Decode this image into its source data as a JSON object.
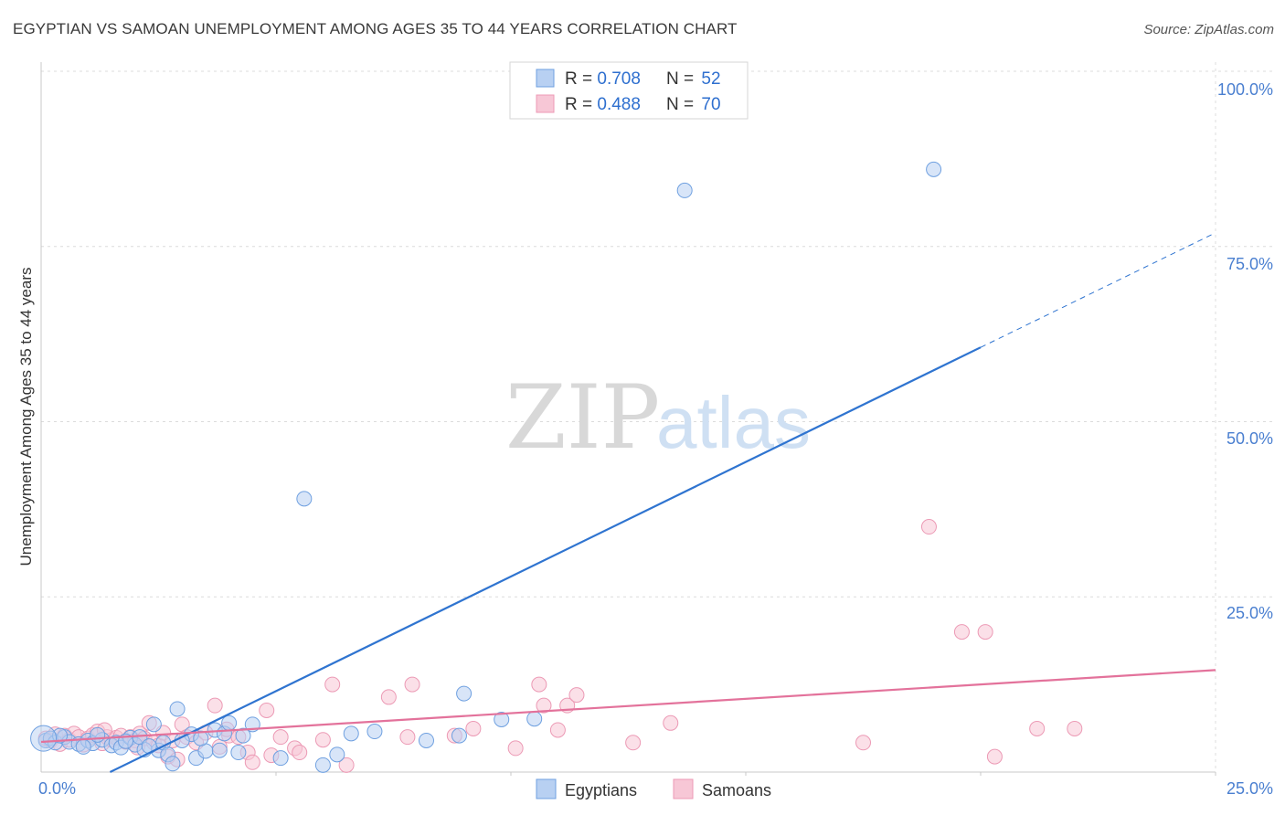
{
  "header": {
    "title": "EGYPTIAN VS SAMOAN UNEMPLOYMENT AMONG AGES 35 TO 44 YEARS CORRELATION CHART",
    "source": "Source: ZipAtlas.com"
  },
  "watermark": {
    "zip": "ZIP",
    "atlas": "atlas"
  },
  "colors": {
    "egyptians": "#6fa0e0",
    "egyptians_fill": "#b8d0f2",
    "egyptians_line": "#2f74d0",
    "samoans": "#ec9ab5",
    "samoans_fill": "#f7c7d6",
    "samoans_line": "#e3729b",
    "tick_text": "#4a7fd0"
  },
  "legend": {
    "rows": [
      {
        "r_label": "R = ",
        "r_value": "0.708",
        "n_label": "N = ",
        "n_value": "52"
      },
      {
        "r_label": "R = ",
        "r_value": "0.488",
        "n_label": "N = ",
        "n_value": "70"
      }
    ]
  },
  "chart_data": {
    "type": "scatter",
    "title": "EGYPTIAN VS SAMOAN UNEMPLOYMENT AMONG AGES 35 TO 44 YEARS CORRELATION CHART",
    "xlabel": "",
    "ylabel": "Unemployment Among Ages 35 to 44 years",
    "xlim": [
      0,
      25
    ],
    "ylim": [
      0,
      100
    ],
    "x_tick_labels": [
      "0.0%",
      "25.0%"
    ],
    "y_ticks": [
      25,
      50,
      75,
      100
    ],
    "y_tick_labels": [
      "25.0%",
      "50.0%",
      "75.0%",
      "100.0%"
    ],
    "grid": true,
    "legend_position": "bottom-center",
    "series": [
      {
        "name": "Egyptians",
        "R": 0.708,
        "N": 52,
        "trend": {
          "slope": 3.27,
          "intercept": -4.8,
          "solid_to_x": 20,
          "dashed_to_x": 25
        },
        "points": [
          [
            0.1,
            4.5
          ],
          [
            0.2,
            4.8
          ],
          [
            0.3,
            4.2
          ],
          [
            0.5,
            5.0
          ],
          [
            0.6,
            4.3
          ],
          [
            0.8,
            4.0
          ],
          [
            1.0,
            4.5
          ],
          [
            1.1,
            4.1
          ],
          [
            1.3,
            4.6
          ],
          [
            1.5,
            3.8
          ],
          [
            1.6,
            4.2
          ],
          [
            1.7,
            3.5
          ],
          [
            1.9,
            4.9
          ],
          [
            2.0,
            3.9
          ],
          [
            2.2,
            3.2
          ],
          [
            2.4,
            6.8
          ],
          [
            2.5,
            3.1
          ],
          [
            2.6,
            4.2
          ],
          [
            2.7,
            2.5
          ],
          [
            2.8,
            1.2
          ],
          [
            2.9,
            9.0
          ],
          [
            3.2,
            5.4
          ],
          [
            3.3,
            2.0
          ],
          [
            3.5,
            3.0
          ],
          [
            3.7,
            6.0
          ],
          [
            3.8,
            3.1
          ],
          [
            3.9,
            5.5
          ],
          [
            4.0,
            7.0
          ],
          [
            4.2,
            2.8
          ],
          [
            4.3,
            5.2
          ],
          [
            4.5,
            6.8
          ],
          [
            5.1,
            2.0
          ],
          [
            5.6,
            39.0
          ],
          [
            6.0,
            1.0
          ],
          [
            6.3,
            2.5
          ],
          [
            6.6,
            5.5
          ],
          [
            7.1,
            5.8
          ],
          [
            8.2,
            4.5
          ],
          [
            8.9,
            5.2
          ],
          [
            9.0,
            11.2
          ],
          [
            9.8,
            7.5
          ],
          [
            10.5,
            7.6
          ],
          [
            13.7,
            83.0
          ],
          [
            19.0,
            86.0
          ],
          [
            0.4,
            5.2
          ],
          [
            0.9,
            3.6
          ],
          [
            1.2,
            5.3
          ],
          [
            1.8,
            4.4
          ],
          [
            2.1,
            5.0
          ],
          [
            3.0,
            4.5
          ],
          [
            3.4,
            4.8
          ],
          [
            2.3,
            3.7
          ]
        ]
      },
      {
        "name": "Samoans",
        "R": 0.488,
        "N": 70,
        "trend": {
          "slope": 0.41,
          "intercept": 4.3,
          "solid_to_x": 25
        },
        "points": [
          [
            0.1,
            4.8
          ],
          [
            0.2,
            4.5
          ],
          [
            0.3,
            5.4
          ],
          [
            0.4,
            4.0
          ],
          [
            0.5,
            5.2
          ],
          [
            0.6,
            4.6
          ],
          [
            0.7,
            5.5
          ],
          [
            0.8,
            5.0
          ],
          [
            1.0,
            4.8
          ],
          [
            1.1,
            5.3
          ],
          [
            1.2,
            5.8
          ],
          [
            1.3,
            4.1
          ],
          [
            1.4,
            5.0
          ],
          [
            1.5,
            4.6
          ],
          [
            1.6,
            4.9
          ],
          [
            1.7,
            5.2
          ],
          [
            1.8,
            4.3
          ],
          [
            1.9,
            5.0
          ],
          [
            2.0,
            4.5
          ],
          [
            2.1,
            5.5
          ],
          [
            2.2,
            4.8
          ],
          [
            2.3,
            7.0
          ],
          [
            2.4,
            4.2
          ],
          [
            2.5,
            3.8
          ],
          [
            2.6,
            5.6
          ],
          [
            2.7,
            2.2
          ],
          [
            2.8,
            4.5
          ],
          [
            2.9,
            1.8
          ],
          [
            3.0,
            6.8
          ],
          [
            3.1,
            5.0
          ],
          [
            3.3,
            4.2
          ],
          [
            3.5,
            5.6
          ],
          [
            3.7,
            9.5
          ],
          [
            3.8,
            3.6
          ],
          [
            4.0,
            5.2
          ],
          [
            4.2,
            5.0
          ],
          [
            4.4,
            2.8
          ],
          [
            4.5,
            1.4
          ],
          [
            4.8,
            8.8
          ],
          [
            4.9,
            2.4
          ],
          [
            5.1,
            5.0
          ],
          [
            5.4,
            3.4
          ],
          [
            5.5,
            2.8
          ],
          [
            6.0,
            4.6
          ],
          [
            6.2,
            12.5
          ],
          [
            6.5,
            1.0
          ],
          [
            7.4,
            10.7
          ],
          [
            7.8,
            5.0
          ],
          [
            7.9,
            12.5
          ],
          [
            8.8,
            5.2
          ],
          [
            9.2,
            6.2
          ],
          [
            10.1,
            3.4
          ],
          [
            10.6,
            12.5
          ],
          [
            10.7,
            9.5
          ],
          [
            11.0,
            6.0
          ],
          [
            11.2,
            9.5
          ],
          [
            11.4,
            11.0
          ],
          [
            12.6,
            4.2
          ],
          [
            13.4,
            7.0
          ],
          [
            17.5,
            4.2
          ],
          [
            18.9,
            35.0
          ],
          [
            19.6,
            20.0
          ],
          [
            20.1,
            20.0
          ],
          [
            20.3,
            2.2
          ],
          [
            21.2,
            6.2
          ],
          [
            22.0,
            6.2
          ],
          [
            0.9,
            3.9
          ],
          [
            1.35,
            6.0
          ],
          [
            2.05,
            3.5
          ],
          [
            3.95,
            6.1
          ]
        ]
      }
    ]
  }
}
